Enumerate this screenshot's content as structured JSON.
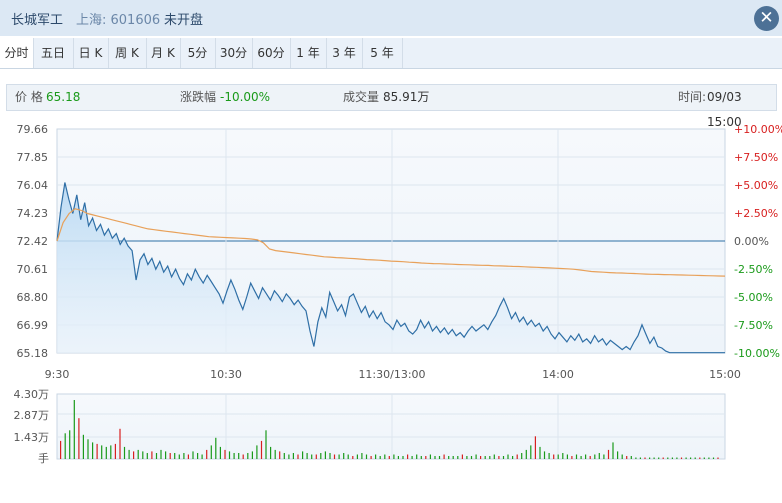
{
  "header": {
    "stock_name": "长城军工",
    "market_code": "上海: 601606",
    "status": "未开盘",
    "close_icon": "close-icon"
  },
  "tabs": [
    "分时",
    "五日",
    "日 K",
    "周 K",
    "月 K",
    "5分",
    "30分",
    "60分",
    "1 年",
    "3 年",
    "5 年"
  ],
  "active_tab": "分时",
  "info": {
    "price_label": "价 格",
    "price": "65.18",
    "change_label": "涨跌幅",
    "change": "-10.00%",
    "volume_label": "成交量",
    "volume": "85.91万",
    "time_label": "时间:",
    "time": "09/03 15:00"
  },
  "colors": {
    "price_line": "#2f6fa6",
    "avg_line": "#e8a15a",
    "area_top": "#b9d9f3",
    "up": "#d82020",
    "down": "#1a9a1a"
  },
  "chart_data": {
    "type": "line",
    "price_axis_ticks": [
      "79.66",
      "77.85",
      "76.04",
      "74.23",
      "72.42",
      "70.61",
      "68.80",
      "66.99",
      "65.18"
    ],
    "pct_axis_ticks": [
      "+10.00%",
      "+7.50%",
      "+5.00%",
      "+2.50%",
      "0.00%",
      "-2.50%",
      "-5.00%",
      "-7.50%",
      "-10.00%"
    ],
    "x_ticks": [
      "9:30",
      "10:30",
      "11:30/13:00",
      "14:00",
      "15:00"
    ],
    "ylim": [
      65.18,
      79.66
    ],
    "prev_close": 72.42,
    "series": [
      {
        "values": [
          72.42,
          74.6,
          76.2,
          75.1,
          74.2,
          75.4,
          73.8,
          74.9,
          73.4,
          73.9,
          73.1,
          73.5,
          72.8,
          73.2,
          72.6,
          72.9,
          72.2,
          72.6,
          72.1,
          71.8,
          69.9,
          71.2,
          71.6,
          70.9,
          71.3,
          70.6,
          71.1,
          70.4,
          70.8,
          70.1,
          70.6,
          70.0,
          69.6,
          70.3,
          69.9,
          70.6,
          70.1,
          69.7,
          70.2,
          69.8,
          69.4,
          69.0,
          68.4,
          69.2,
          69.9,
          69.3,
          68.6,
          68.0,
          68.8,
          69.7,
          69.2,
          68.7,
          69.4,
          69.0,
          68.6,
          69.2,
          68.9,
          68.5,
          69.0,
          68.7,
          68.3,
          68.6,
          68.2,
          67.9,
          66.6,
          65.6,
          67.2,
          68.1,
          67.5,
          69.1,
          68.5,
          67.9,
          68.3,
          67.6,
          68.8,
          69.0,
          68.4,
          67.8,
          68.2,
          67.5,
          67.9,
          67.4,
          67.8,
          67.2,
          67.0,
          66.7,
          67.3,
          66.9,
          67.1,
          66.6,
          66.4,
          66.7,
          67.3,
          66.8,
          67.2,
          66.6,
          66.9,
          66.5,
          66.8,
          66.4,
          66.7,
          66.3,
          66.5,
          66.2,
          66.6,
          66.9,
          66.6,
          66.8,
          67.0,
          66.7,
          67.2,
          67.6,
          68.2,
          68.7,
          68.1,
          67.4,
          67.8,
          67.2,
          67.5,
          67.0,
          67.3,
          66.9,
          67.1,
          66.6,
          66.9,
          66.4,
          66.1,
          66.5,
          66.2,
          65.9,
          66.3,
          66.0,
          66.4,
          65.9,
          66.1,
          65.8,
          66.3,
          65.9,
          66.1,
          65.7,
          66.0,
          65.8,
          65.6,
          65.4,
          65.6,
          65.4,
          65.9,
          66.3,
          67.0,
          66.4,
          65.8,
          66.2,
          65.6,
          65.5,
          65.3,
          65.2,
          65.2,
          65.2,
          65.2,
          65.2,
          65.2,
          65.2,
          65.2,
          65.2,
          65.2,
          65.2,
          65.2,
          65.2,
          65.2,
          65.2
        ]
      },
      {
        "values": [
          72.42,
          73.6,
          74.2,
          74.5,
          74.4,
          74.2,
          74.1,
          74.0,
          73.9,
          73.8,
          73.7,
          73.6,
          73.5,
          73.4,
          73.3,
          73.2,
          73.15,
          73.1,
          73.05,
          73.0,
          72.95,
          72.9,
          72.85,
          72.8,
          72.75,
          72.7,
          72.68,
          72.66,
          72.64,
          72.62,
          72.6,
          72.58,
          72.55,
          72.5,
          72.3,
          71.9,
          71.8,
          71.75,
          71.7,
          71.65,
          71.6,
          71.55,
          71.5,
          71.45,
          71.4,
          71.38,
          71.35,
          71.33,
          71.3,
          71.28,
          71.25,
          71.22,
          71.2,
          71.18,
          71.15,
          71.12,
          71.1,
          71.08,
          71.05,
          71.03,
          71.0,
          70.98,
          70.96,
          70.95,
          70.93,
          70.92,
          70.9,
          70.89,
          70.88,
          70.86,
          70.85,
          70.84,
          70.82,
          70.81,
          70.8,
          70.78,
          70.77,
          70.75,
          70.73,
          70.72,
          70.7,
          70.68,
          70.66,
          70.64,
          70.62,
          70.6,
          70.55,
          70.5,
          70.45,
          70.42,
          70.4,
          70.38,
          70.36,
          70.35,
          70.33,
          70.32,
          70.3,
          70.28,
          70.27,
          70.26,
          70.25,
          70.24,
          70.23,
          70.22,
          70.21,
          70.2,
          70.19,
          70.18,
          70.17,
          70.16,
          70.15
        ]
      }
    ],
    "volume_axis_ticks": [
      "4.30万",
      "2.87万",
      "1.43万",
      "手"
    ],
    "volume_max": 4.3
  }
}
